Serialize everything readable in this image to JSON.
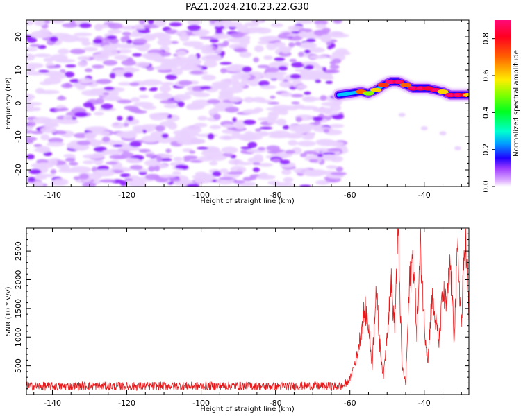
{
  "title": "PAZ1.2024.210.23.22.G30",
  "chart_data": [
    {
      "type": "heatmap",
      "xlabel": "Height of straight line (km)",
      "ylabel": "Frequency (Hz)",
      "xlim": [
        -147,
        -28
      ],
      "ylim": [
        -25,
        25
      ],
      "xticks": [
        -140,
        -120,
        -100,
        -80,
        -60,
        -40
      ],
      "yticks": [
        -20,
        -10,
        0,
        10,
        20
      ],
      "colorbar": {
        "label": "Normalized spectral amplitude",
        "ticks": [
          0.0,
          0.2,
          0.4,
          0.6,
          0.8
        ],
        "colormap": "gist_rainbow_r",
        "range": [
          0,
          0.9
        ]
      },
      "noise_region": {
        "x_range": [
          -147,
          -62
        ],
        "y_range": [
          -25,
          25
        ],
        "amplitude_range": [
          0.0,
          0.2
        ]
      },
      "signal_trace": {
        "x": [
          -63,
          -60,
          -57,
          -55,
          -53,
          -51,
          -49,
          -47,
          -45,
          -43,
          -41,
          -39,
          -37,
          -35,
          -33,
          -31,
          -29,
          -28
        ],
        "y": [
          2.5,
          3.0,
          3.5,
          3.0,
          4.0,
          5.5,
          6.5,
          6.5,
          5.5,
          4.5,
          4.5,
          4.5,
          4.0,
          3.5,
          2.5,
          2.5,
          2.5,
          2.5
        ],
        "amplitude": [
          0.3,
          0.4,
          0.7,
          0.5,
          0.6,
          0.75,
          0.9,
          0.85,
          0.7,
          0.85,
          0.85,
          0.8,
          0.85,
          0.6,
          0.85,
          0.85,
          0.8,
          0.6
        ]
      }
    },
    {
      "type": "line",
      "xlabel": "Height of straight line (km)",
      "ylabel": "SNR (10 * v/v)",
      "xlim": [
        -147,
        -28
      ],
      "ylim": [
        0,
        2900
      ],
      "xticks": [
        -140,
        -120,
        -100,
        -80,
        -60,
        -40
      ],
      "yticks": [
        500,
        1000,
        1500,
        2000,
        2500
      ],
      "color": "#e41a1c",
      "series": [
        {
          "x": [
            -147,
            -140,
            -130,
            -120,
            -110,
            -100,
            -90,
            -80,
            -70,
            -62,
            -60,
            -58,
            -56,
            -55,
            -54,
            -53,
            -52,
            -51,
            -50,
            -49,
            -48,
            -47,
            -46,
            -45,
            -44,
            -43,
            -42,
            -41,
            -40,
            -39,
            -38,
            -37,
            -36,
            -35,
            -34,
            -33,
            -32,
            -31,
            -30,
            -29,
            -28
          ],
          "y": [
            150,
            140,
            150,
            140,
            150,
            145,
            150,
            140,
            150,
            140,
            260,
            700,
            1500,
            1200,
            500,
            1900,
            900,
            300,
            1100,
            2000,
            1200,
            2850,
            500,
            200,
            1900,
            2400,
            1100,
            2600,
            1200,
            600,
            1700,
            1300,
            900,
            1800,
            1500,
            2300,
            1000,
            2500,
            1200,
            2850,
            1300
          ]
        }
      ]
    }
  ]
}
